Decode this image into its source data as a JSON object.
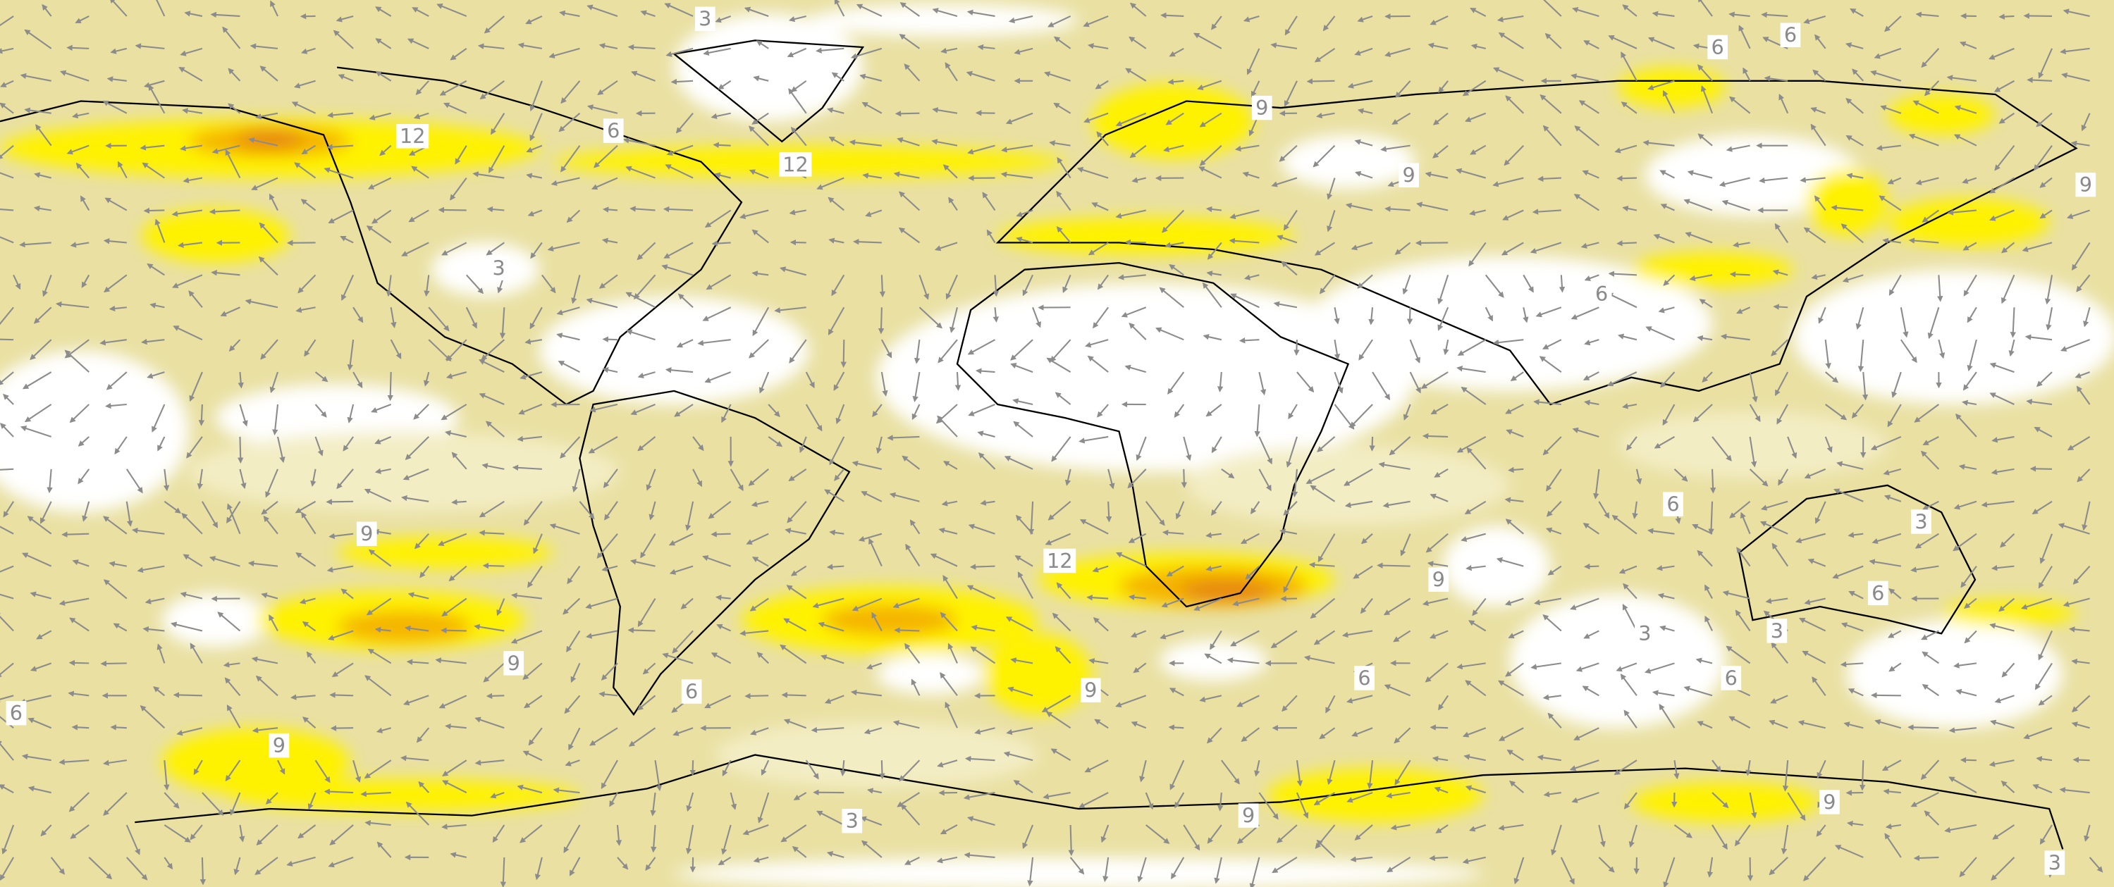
{
  "contour_labels": [
    3,
    6,
    6,
    9,
    12,
    6,
    12,
    9,
    9,
    3,
    6,
    6,
    3,
    9,
    12,
    9,
    6,
    3,
    3,
    9,
    6,
    9,
    6,
    6,
    6,
    9,
    3,
    9,
    9,
    3
  ]
}
